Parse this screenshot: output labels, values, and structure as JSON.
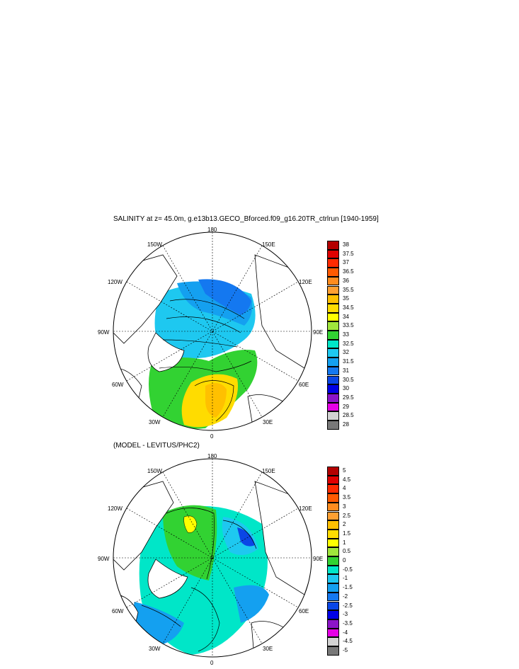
{
  "title_top": "SALINITY at z=  45.0m, g.e13b13.GECO_Bforced.f09_g16.20TR_ctrlrun [1940-1959]",
  "title_bottom": "(MODEL - LEVITUS/PHC2)",
  "lon_labels": {
    "n180": "180",
    "w150": "150W",
    "e150": "150E",
    "w120": "120W",
    "e120": "120E",
    "w90": "90W",
    "e90": "90E",
    "w60": "60W",
    "e60": "60E",
    "w30": "30W",
    "e30": "30E",
    "s0": "0"
  },
  "colorbar_top": {
    "labels": [
      "38",
      "37.5",
      "37",
      "36.5",
      "36",
      "35.5",
      "35",
      "34.5",
      "34",
      "33.5",
      "33",
      "32.5",
      "32",
      "31.5",
      "31",
      "30.5",
      "30",
      "29.5",
      "29",
      "28.5",
      "28"
    ],
    "colors": [
      "#b40000",
      "#e00000",
      "#ff2a00",
      "#ff5a00",
      "#ff8c1e",
      "#ffa032",
      "#ffc000",
      "#ffdc00",
      "#ffff00",
      "#a0e63c",
      "#32d232",
      "#00e6c8",
      "#1ec8f0",
      "#14a0f0",
      "#1478f0",
      "#0a46e6",
      "#0000e6",
      "#8c14c8",
      "#e600e6",
      "#d2d2d2",
      "#787878"
    ]
  },
  "colorbar_bottom": {
    "labels": [
      "5",
      "4.5",
      "4",
      "3.5",
      "3",
      "2.5",
      "2",
      "1.5",
      "1",
      "0.5",
      "0",
      "-0.5",
      "-1",
      "-1.5",
      "-2",
      "-2.5",
      "-3",
      "-3.5",
      "-4",
      "-4.5",
      "-5"
    ],
    "colors": [
      "#b40000",
      "#e00000",
      "#ff2a00",
      "#ff5a00",
      "#ff8c1e",
      "#ffa032",
      "#ffc000",
      "#ffdc00",
      "#ffff00",
      "#a0e63c",
      "#32d232",
      "#00e6c8",
      "#1ec8f0",
      "#14a0f0",
      "#1478f0",
      "#0a46e6",
      "#0000e6",
      "#8c14c8",
      "#e600e6",
      "#d2d2d2",
      "#787878"
    ]
  }
}
